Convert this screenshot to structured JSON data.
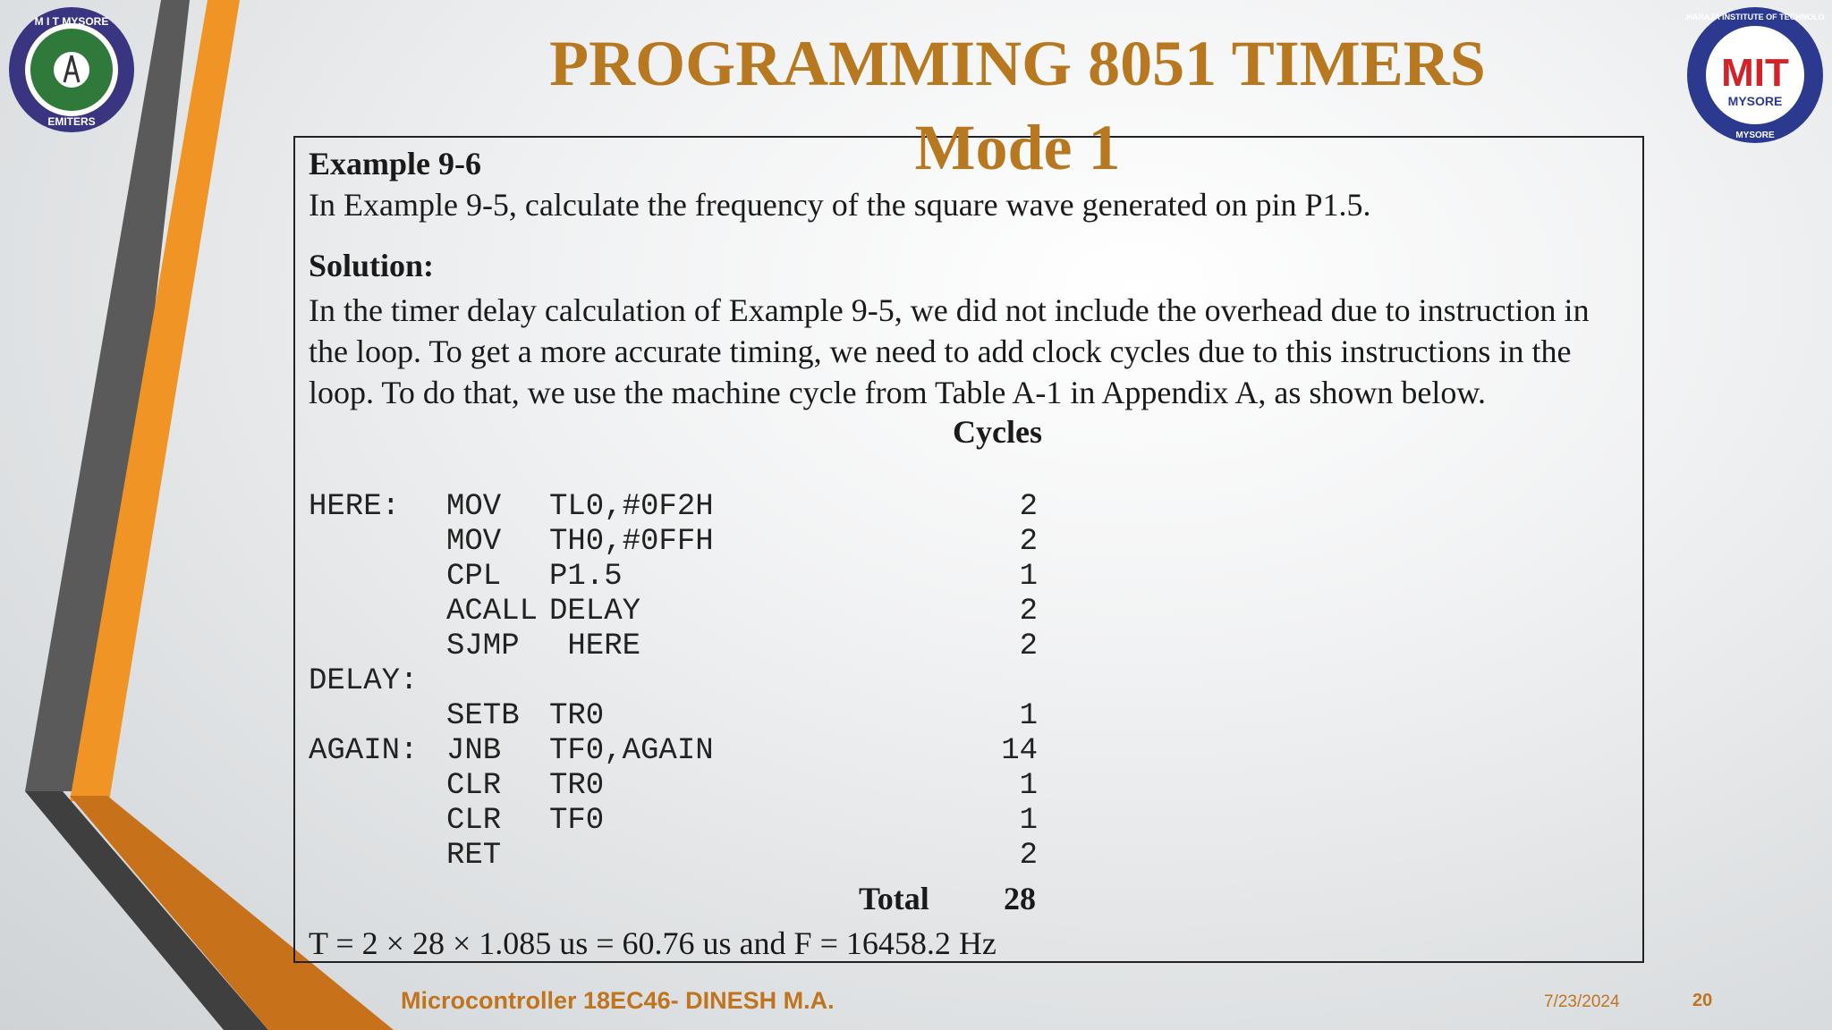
{
  "slide": {
    "title_line1": "PROGRAMMING 8051 TIMERS",
    "title_line2": "Mode 1",
    "example_heading": "Example 9-6",
    "example_question": "In Example 9-5, calculate the frequency of the square wave generated on pin P1.5.",
    "solution_heading": "Solution:",
    "solution_lines": [
      "In the timer delay calculation of Example 9-5, we did not include the  overhead due to instruction in",
      "the loop. To get a more accurate timing,  we need to add clock cycles due to this instructions in the",
      "loop. To do  that, we use the machine cycle from Table A-1 in Appendix A, as  shown below."
    ],
    "cycles_heading": "Cycles",
    "code_rows": [
      {
        "label": "HERE:",
        "op": "MOV",
        "args": "TL0,#0F2H",
        "cycles": "2"
      },
      {
        "label": "",
        "op": "MOV",
        "args": "TH0,#0FFH",
        "cycles": "2"
      },
      {
        "label": "",
        "op": "CPL",
        "args": "P1.5",
        "cycles": "1"
      },
      {
        "label": "",
        "op": "ACALL",
        "args": "DELAY",
        "cycles": "2"
      },
      {
        "label": "",
        "op": "SJMP",
        "args": " HERE",
        "cycles": "2"
      },
      {
        "label": "DELAY:",
        "op": "",
        "args": "",
        "cycles": ""
      },
      {
        "label": "",
        "op": "SETB",
        "args": "TR0",
        "cycles": "1"
      },
      {
        "label": "AGAIN:",
        "op": "JNB",
        "args": "TF0,AGAIN",
        "cycles": "14"
      },
      {
        "label": "",
        "op": "CLR",
        "args": "TR0",
        "cycles": "1"
      },
      {
        "label": "",
        "op": "CLR",
        "args": "TF0",
        "cycles": "1"
      },
      {
        "label": "",
        "op": "RET",
        "args": "",
        "cycles": "2"
      }
    ],
    "total_label": "Total",
    "total_value": "28",
    "formula": "T = 2 × 28 × 1.085 us = 60.76 us and F = 16458.2 Hz"
  },
  "footer": {
    "course": "Microcontroller 18EC46- DINESH M.A.",
    "date": "7/23/2024",
    "page_number": "20"
  },
  "logos": {
    "left": {
      "top_text": "M I T MYSORE",
      "bottom_text": "EMITERS"
    },
    "right": {
      "ring_top": "MAHARAJA INSTITUTE OF TECHNOLOGY",
      "ring_bottom": "MYSORE",
      "center_mark": "MIT",
      "center_text": "MYSORE"
    }
  },
  "colors": {
    "title": "#b8781f",
    "accent_orange": "#ef9425",
    "accent_gray": "#555555",
    "logo_blue": "#2b3a8f",
    "logo_red": "#d2232a"
  }
}
